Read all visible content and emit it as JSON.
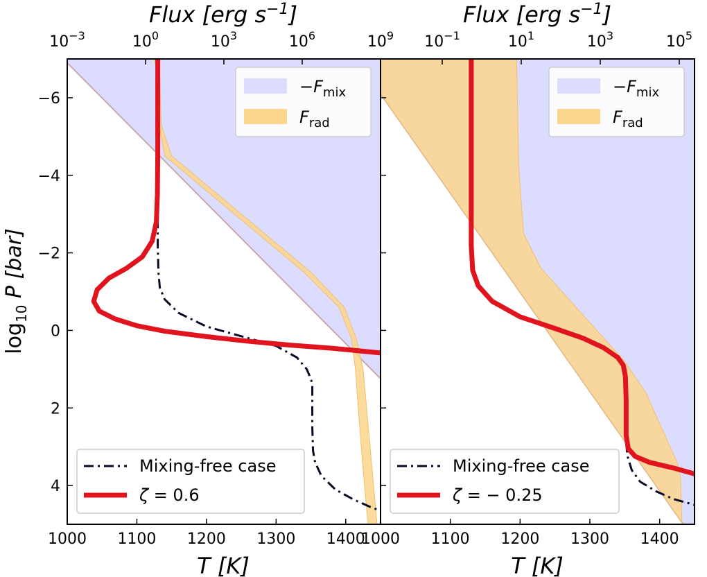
{
  "chart_data": [
    {
      "type": "line",
      "panel": "left",
      "xlabel": "T [K]",
      "ylabel": "log10 P [bar]",
      "top_axis_label": "Flux [erg s^-1]",
      "xlim": [
        1000,
        1450
      ],
      "ylim": [
        5,
        -7
      ],
      "y_ticks": [
        -6,
        -4,
        -2,
        0,
        2,
        4
      ],
      "x_ticks": [
        1000,
        1100,
        1200,
        1300,
        1400
      ],
      "top_ticks": [
        "10^-3",
        "10^0",
        "10^3",
        "10^6",
        "10^9"
      ],
      "legend_upper": [
        "−F_mix",
        "F_rad"
      ],
      "legend_lower": [
        "Mixing-free case",
        "ζ = 0.6"
      ],
      "series": [
        {
          "name": "Mixing-free case",
          "style": "dashdot",
          "color": "#0a0a28",
          "points": [
            [
              1130,
              -3.4
            ],
            [
              1130,
              -2.2
            ],
            [
              1131,
              -1.5
            ],
            [
              1133,
              -1.1
            ],
            [
              1140,
              -0.8
            ],
            [
              1160,
              -0.45
            ],
            [
              1200,
              -0.1
            ],
            [
              1250,
              0.15
            ],
            [
              1300,
              0.4
            ],
            [
              1330,
              0.7
            ],
            [
              1344,
              1.0
            ],
            [
              1350,
              1.25
            ],
            [
              1352,
              1.4
            ],
            [
              1352,
              2.5
            ],
            [
              1353,
              3.1
            ],
            [
              1356,
              3.4
            ],
            [
              1365,
              3.75
            ],
            [
              1385,
              4.1
            ],
            [
              1410,
              4.35
            ],
            [
              1435,
              4.55
            ],
            [
              1450,
              4.65
            ]
          ]
        },
        {
          "name": "ζ = 0.6",
          "style": "solid",
          "color": "#e0141e",
          "points": [
            [
              1130,
              -7
            ],
            [
              1130,
              -4.5
            ],
            [
              1129.5,
              -3.5
            ],
            [
              1128,
              -2.8
            ],
            [
              1122,
              -2.3
            ],
            [
              1108,
              -1.9
            ],
            [
              1085,
              -1.6
            ],
            [
              1060,
              -1.35
            ],
            [
              1043,
              -1.05
            ],
            [
              1038,
              -0.75
            ],
            [
              1046,
              -0.5
            ],
            [
              1068,
              -0.3
            ],
            [
              1100,
              -0.12
            ],
            [
              1140,
              0.02
            ],
            [
              1200,
              0.16
            ],
            [
              1260,
              0.28
            ],
            [
              1320,
              0.38
            ],
            [
              1380,
              0.46
            ],
            [
              1450,
              0.58
            ]
          ]
        }
      ],
      "fill_fmix": "linear from (1000,-6.9) to (1420,0.7); fills region right of it",
      "fill_frad": [
        [
          1127,
          -7
        ],
        [
          1132,
          -7
        ],
        [
          1135,
          -5.3
        ],
        [
          1150,
          -4.5
        ],
        [
          1250,
          -3.0
        ],
        [
          1350,
          -1.5
        ],
        [
          1398,
          -0.6
        ],
        [
          1415,
          0.2
        ],
        [
          1425,
          1.0
        ],
        [
          1430,
          2.0
        ],
        [
          1437,
          3.4
        ],
        [
          1445,
          5
        ]
      ],
      "fill_frad_left": [
        [
          1125,
          -7
        ],
        [
          1130,
          -6.6
        ],
        [
          1132,
          -5.3
        ],
        [
          1140,
          -4.5
        ],
        [
          1240,
          -3.0
        ],
        [
          1340,
          -1.5
        ],
        [
          1390,
          -0.6
        ],
        [
          1408,
          0.2
        ],
        [
          1414,
          1.0
        ],
        [
          1418,
          2.0
        ],
        [
          1424,
          3.4
        ],
        [
          1432,
          5
        ]
      ]
    },
    {
      "type": "line",
      "panel": "right",
      "xlabel": "T [K]",
      "top_axis_label": "Flux [erg s^-1]",
      "xlim": [
        1000,
        1450
      ],
      "ylim": [
        5,
        -7
      ],
      "x_ticks": [
        1000,
        1100,
        1200,
        1300,
        1400
      ],
      "top_ticks": [
        "10^-1",
        "10^1",
        "10^3",
        "10^5"
      ],
      "legend_upper": [
        "−F_mix",
        "F_rad"
      ],
      "legend_lower": [
        "Mixing-free case",
        "ζ = −0.25"
      ],
      "series": [
        {
          "name": "Mixing-free case",
          "style": "dashdot",
          "color": "#0a0a28",
          "points": [
            [
              1352,
              2.9
            ],
            [
              1354,
              3.25
            ],
            [
              1360,
              3.6
            ],
            [
              1372,
              3.9
            ],
            [
              1395,
              4.15
            ],
            [
              1420,
              4.35
            ],
            [
              1450,
              4.5
            ]
          ]
        },
        {
          "name": "ζ = −0.25",
          "style": "solid",
          "color": "#e0141e",
          "points": [
            [
              1130,
              -7
            ],
            [
              1130,
              -2.2
            ],
            [
              1132,
              -1.55
            ],
            [
              1140,
              -1.15
            ],
            [
              1160,
              -0.75
            ],
            [
              1200,
              -0.35
            ],
            [
              1250,
              -0.05
            ],
            [
              1290,
              0.2
            ],
            [
              1320,
              0.45
            ],
            [
              1340,
              0.7
            ],
            [
              1348,
              0.9
            ],
            [
              1351,
              1.2
            ],
            [
              1352,
              1.8
            ],
            [
              1352,
              2.7
            ],
            [
              1355,
              3.05
            ],
            [
              1365,
              3.25
            ],
            [
              1385,
              3.4
            ],
            [
              1420,
              3.55
            ],
            [
              1450,
              3.7
            ]
          ]
        }
      ],
      "fill_fmix": "linear from (1000,-6.1) to (1430,4.9); fills region right of it",
      "fill_frad": [
        [
          1130,
          -7
        ],
        [
          1195,
          -7
        ],
        [
          1198,
          -4.2
        ],
        [
          1205,
          -2.5
        ],
        [
          1230,
          -1.6
        ],
        [
          1265,
          -0.9
        ],
        [
          1310,
          0.0
        ],
        [
          1350,
          0.8
        ],
        [
          1380,
          1.6
        ],
        [
          1400,
          2.4
        ],
        [
          1415,
          3.0
        ],
        [
          1425,
          3.4
        ],
        [
          1430,
          3.8
        ],
        [
          1432,
          5
        ]
      ]
    }
  ]
}
